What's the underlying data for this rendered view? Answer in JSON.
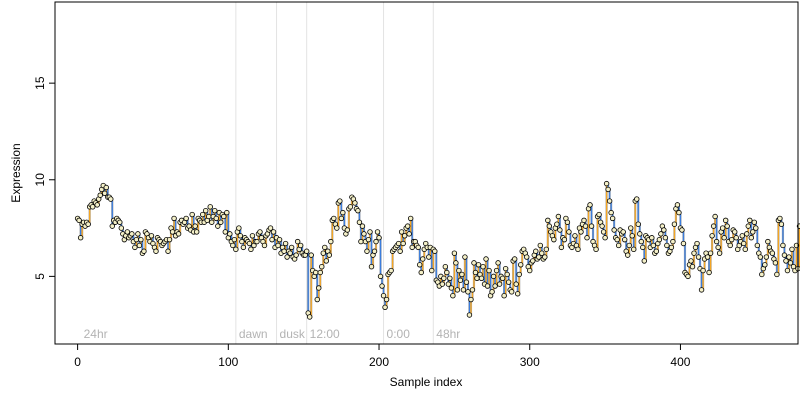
{
  "colors": {
    "trace": "#a8a8a8",
    "up": "#f5a623",
    "down": "#3b7ddd",
    "point_fill": "#f4f0c8",
    "point_stroke": "#000000",
    "region_line": "#e3e3e3",
    "region_text": "#b3b3b3"
  },
  "chart_data": {
    "type": "line",
    "xlabel": "Sample index",
    "ylabel": "Expression",
    "xlim": [
      -15,
      478
    ],
    "ylim": [
      1.5,
      19.2
    ],
    "xticks": [
      0,
      100,
      200,
      300,
      400
    ],
    "yticks": [
      5,
      10,
      15
    ],
    "grid": false,
    "regions": [
      {
        "x": 2,
        "label": "24hr"
      },
      {
        "x": 105,
        "label": "dawn"
      },
      {
        "x": 132,
        "label": "dusk"
      },
      {
        "x": 152,
        "label": "12:00"
      },
      {
        "x": 203,
        "label": "0:00"
      },
      {
        "x": 236,
        "label": "48hr"
      }
    ],
    "series": [
      {
        "values": [
          8.0,
          7.9,
          7.0,
          7.7,
          7.8,
          7.6,
          7.8,
          7.7,
          8.6,
          8.7,
          8.6,
          8.9,
          8.8,
          8.7,
          9.0,
          9.2,
          9.5,
          9.7,
          9.3,
          9.6,
          9.1,
          9.1,
          9.0,
          7.6,
          7.9,
          7.8,
          8.0,
          7.9,
          7.8,
          7.5,
          7.2,
          6.9,
          7.1,
          7.3,
          7.0,
          7.1,
          7.2,
          6.8,
          6.5,
          6.9,
          7.2,
          6.6,
          6.9,
          6.2,
          6.3,
          7.3,
          7.2,
          7.0,
          6.8,
          7.1,
          6.7,
          6.5,
          6.3,
          7.0,
          6.9,
          6.8,
          6.6,
          6.7,
          6.8,
          6.9,
          6.3,
          6.9,
          7.5,
          7.3,
          8.0,
          7.1,
          7.3,
          7.2,
          7.8,
          7.9,
          7.7,
          7.8,
          8.0,
          7.5,
          7.6,
          7.4,
          8.2,
          7.3,
          7.6,
          7.3,
          8.0,
          7.9,
          7.8,
          8.2,
          7.8,
          8.4,
          7.9,
          8.1,
          8.6,
          7.8,
          8.1,
          8.4,
          8.0,
          7.6,
          8.3,
          7.8,
          8.2,
          8.1,
          7.3,
          8.3,
          7.0,
          7.2,
          6.8,
          6.6,
          6.9,
          6.4,
          7.3,
          7.5,
          7.1,
          6.8,
          6.5,
          7.0,
          6.9,
          6.8,
          6.7,
          6.4,
          7.1,
          6.6,
          6.8,
          6.8,
          7.2,
          7.3,
          7.0,
          6.8,
          6.6,
          7.1,
          7.2,
          7.4,
          7.5,
          6.9,
          7.3,
          6.5,
          7.0,
          6.6,
          6.9,
          6.2,
          6.5,
          6.3,
          6.7,
          6.0,
          6.3,
          6.2,
          6.5,
          6.0,
          5.9,
          6.1,
          6.8,
          6.4,
          6.6,
          6.2,
          6.1,
          6.1,
          6.3,
          3.1,
          2.9,
          6.1,
          5.3,
          5.0,
          5.2,
          3.8,
          4.4,
          5.2,
          5.5,
          6.2,
          6.5,
          5.8,
          6.3,
          6.1,
          6.8,
          7.9,
          8.0,
          7.7,
          7.5,
          8.8,
          8.9,
          8.0,
          8.3,
          7.5,
          7.2,
          7.4,
          8.5,
          8.6,
          9.1,
          9.0,
          8.8,
          8.5,
          8.4,
          7.8,
          6.8,
          7.6,
          7.2,
          6.8,
          6.3,
          6.9,
          7.3,
          5.5,
          6.1,
          6.3,
          6.8,
          7.3,
          7.0,
          5.0,
          4.5,
          4.0,
          3.4,
          3.8,
          5.1,
          5.2,
          5.3,
          6.3,
          6.4,
          6.5,
          6.6,
          6.7,
          6.3,
          7.3,
          6.7,
          7.1,
          7.5,
          7.6,
          7.2,
          8.0,
          6.5,
          6.8,
          6.8,
          6.6,
          6.5,
          5.6,
          5.2,
          5.9,
          6.4,
          6.7,
          6.5,
          6.0,
          6.5,
          5.3,
          6.4,
          6.3,
          4.8,
          4.7,
          4.5,
          5.0,
          4.6,
          4.9,
          5.5,
          5.2,
          4.6,
          4.9,
          4.4,
          4.0,
          6.2,
          5.7,
          4.3,
          5.3,
          4.8,
          5.1,
          4.3,
          6.0,
          4.7,
          4.2,
          3.0,
          3.8,
          4.3,
          5.7,
          5.2,
          4.9,
          5.6,
          5.1,
          4.9,
          5.5,
          4.6,
          5.9,
          4.5,
          5.3,
          4.0,
          4.2,
          5.0,
          4.5,
          5.3,
          5.7,
          4.6,
          5.0,
          4.9,
          4.0,
          5.4,
          5.1,
          4.7,
          4.3,
          4.2,
          5.8,
          5.9,
          4.6,
          4.1,
          5.1,
          5.6,
          6.3,
          6.4,
          6.2,
          6.0,
          5.5,
          5.3,
          5.7,
          5.8,
          6.1,
          6.3,
          5.9,
          6.0,
          6.6,
          6.2,
          5.9,
          6.0,
          6.4,
          7.9,
          7.6,
          7.3,
          7.1,
          6.9,
          7.5,
          7.7,
          8.1,
          7.4,
          6.5,
          7.0,
          6.9,
          8.0,
          7.8,
          7.3,
          6.6,
          6.5,
          6.7,
          7.1,
          6.6,
          6.4,
          7.5,
          7.3,
          7.7,
          7.9,
          7.6,
          7.0,
          8.5,
          8.7,
          7.6,
          6.8,
          6.6,
          6.4,
          8.1,
          8.2,
          7.8,
          7.6,
          7.3,
          7.0,
          9.8,
          9.5,
          8.9,
          8.3,
          8.0,
          7.4,
          7.0,
          6.9,
          6.6,
          7.4,
          7.2,
          7.3,
          6.9,
          6.3,
          6.1,
          6.6,
          7.5,
          7.1,
          6.4,
          8.9,
          9.0,
          7.7,
          7.2,
          6.8,
          6.5,
          5.8,
          7.1,
          7.0,
          6.9,
          6.5,
          7.0,
          6.6,
          6.2,
          6.3,
          6.7,
          6.9,
          7.2,
          7.6,
          7.4,
          7.0,
          6.6,
          6.2,
          6.3,
          6.5,
          6.8,
          7.7,
          8.5,
          8.7,
          8.3,
          7.5,
          7.4,
          6.7,
          5.2,
          5.1,
          5.0,
          5.6,
          5.8,
          5.5,
          6.2,
          6.5,
          6.7,
          6.0,
          5.4,
          4.3,
          5.3,
          5.9,
          6.2,
          6.0,
          5.2,
          6.2,
          7.1,
          7.6,
          8.1,
          6.8,
          6.5,
          6.2,
          7.3,
          7.5,
          7.0,
          7.9,
          7.6,
          6.8,
          6.6,
          6.9,
          7.4,
          7.3,
          7.0,
          6.4,
          6.6,
          6.8,
          7.1,
          6.7,
          6.4,
          7.2,
          7.6,
          7.9,
          7.0,
          7.3,
          7.8,
          7.5,
          6.6,
          6.2,
          6.0,
          5.1,
          5.4,
          5.6,
          6.0,
          6.8,
          6.5,
          6.3,
          6.2,
          5.9,
          5.7,
          5.1,
          7.9,
          8.0,
          7.7,
          6.6,
          6.1,
          5.8,
          5.3,
          6.0,
          5.7,
          6.4,
          5.5,
          5.3,
          6.6,
          5.4,
          7.6
        ]
      }
    ]
  }
}
